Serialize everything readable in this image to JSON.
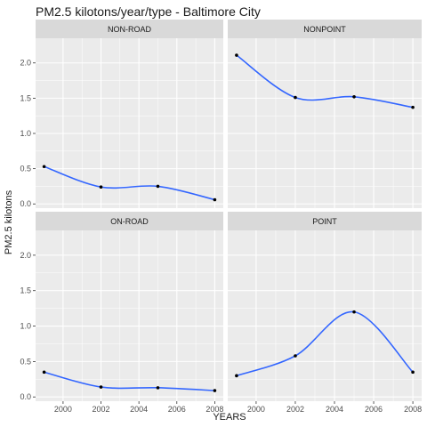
{
  "chart_data": {
    "type": "line",
    "title": "PM2.5 kilotons/year/type - Baltimore City",
    "xlabel": "YEARS",
    "ylabel": "PM2.5 kilotons",
    "x": [
      1999,
      2002,
      2005,
      2008
    ],
    "xlim": [
      1998.55,
      2008.45
    ],
    "ylim": [
      -0.06,
      2.35
    ],
    "xticks": [
      2000,
      2002,
      2004,
      2006,
      2008
    ],
    "yticks": [
      0.0,
      0.5,
      1.0,
      1.5,
      2.0
    ],
    "ytick_labels": [
      "0.0",
      "0.5",
      "1.0",
      "1.5",
      "2.0"
    ],
    "grid": true,
    "line_color": "#3366ff",
    "point_color": "#000000",
    "facets": [
      {
        "name": "NON-ROAD",
        "values": [
          0.53,
          0.24,
          0.25,
          0.06
        ]
      },
      {
        "name": "NONPOINT",
        "values": [
          2.11,
          1.51,
          1.52,
          1.37
        ]
      },
      {
        "name": "ON-ROAD",
        "values": [
          0.35,
          0.14,
          0.13,
          0.09
        ]
      },
      {
        "name": "POINT",
        "values": [
          0.3,
          0.58,
          1.2,
          0.35
        ]
      }
    ]
  }
}
